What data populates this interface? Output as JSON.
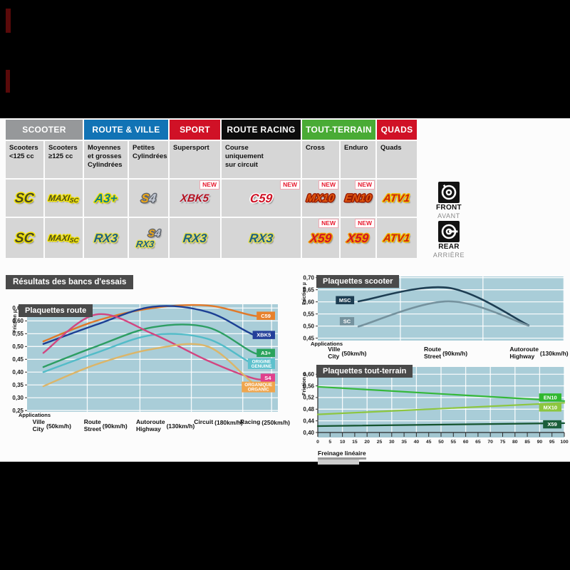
{
  "section_title": "Résultats des bancs d'essais",
  "table": {
    "new_label": "NEW",
    "groups": [
      {
        "label": "SCOOTER",
        "color": "#96989a",
        "span": 2
      },
      {
        "label": "ROUTE & VILLE",
        "color": "#1173b5",
        "span": 2
      },
      {
        "label": "SPORT",
        "color": "#d01126",
        "span": 1
      },
      {
        "label": "ROUTE RACING",
        "color": "#0d0d0d",
        "span": 1
      },
      {
        "label": "TOUT-TERRAIN",
        "color": "#49ab35",
        "span": 2
      },
      {
        "label": "QUADS",
        "color": "#d01126",
        "span": 1
      }
    ],
    "subheaders": [
      "Scooters\n<125 cc",
      "Scooters\n≥125 cc",
      "Moyennes\net grosses\nCylindrées",
      "Petites\nCylindrées",
      "Supersport",
      "Course\nuniquement\nsur circuit",
      "Cross",
      "Enduro",
      "Quads"
    ],
    "rows": [
      {
        "side": "front",
        "cells": [
          {
            "items": [
              "SC"
            ],
            "new": false
          },
          {
            "items": [
              "MAXI-SC"
            ],
            "new": false
          },
          {
            "items": [
              "A3+"
            ],
            "new": false
          },
          {
            "items": [
              "S4"
            ],
            "new": false
          },
          {
            "items": [
              "XBK5"
            ],
            "new": true
          },
          {
            "items": [
              "C59"
            ],
            "new": true
          },
          {
            "items": [
              "MX10"
            ],
            "new": true
          },
          {
            "items": [
              "EN10"
            ],
            "new": true
          },
          {
            "items": [
              "ATV1"
            ],
            "new": false
          }
        ]
      },
      {
        "side": "rear",
        "cells": [
          {
            "items": [
              "SC"
            ],
            "new": false
          },
          {
            "items": [
              "MAXI-SC"
            ],
            "new": false
          },
          {
            "items": [
              "RX3"
            ],
            "new": false
          },
          {
            "items": [
              "S4",
              "RX3"
            ],
            "new": false
          },
          {
            "items": [
              "RX3"
            ],
            "new": false
          },
          {
            "items": [
              "RX3"
            ],
            "new": false
          },
          {
            "items": [
              "X59"
            ],
            "new": true
          },
          {
            "items": [
              "X59"
            ],
            "new": true
          },
          {
            "items": [
              "ATV1"
            ],
            "new": false
          }
        ]
      }
    ]
  },
  "products": {
    "SC": {
      "color": "#4a4a20",
      "outline": "#f2e300"
    },
    "MAXI-SC": {
      "color": "#4a4a20",
      "outline": "#f2e300"
    },
    "A3+": {
      "color": "#0f7f86",
      "outline": "#f2e300"
    },
    "S4": {
      "parts": [
        {
          "t": "S",
          "color": "#f0a816"
        },
        {
          "t": "4",
          "color": "#c3c9d4"
        }
      ],
      "outline": "#62676f"
    },
    "XBK5": {
      "color": "#b5121f",
      "outline": "#d6d6de"
    },
    "C59": {
      "color": "#cf1326",
      "outline": "#ffffff"
    },
    "MX10": {
      "color": "#e0580f",
      "outline": "#991a00"
    },
    "EN10": {
      "color": "#e0580f",
      "outline": "#991a00"
    },
    "ATV1": {
      "color": "#cc2012",
      "outline": "#f2c300"
    },
    "RX3": {
      "color": "#1b5f86",
      "outline": "#e6df52"
    },
    "X59": {
      "color": "#cf1326",
      "outline": "#f0a000"
    }
  },
  "side_badges": {
    "front": {
      "label": "FRONT",
      "sub": "AVANT"
    },
    "rear": {
      "label": "REAR",
      "sub": "ARRIÈRE"
    }
  },
  "chart_data": [
    {
      "type": "line",
      "title": "Plaquettes route",
      "ylabel": "Friction µ",
      "ylim": [
        0.25,
        0.65
      ],
      "yticks": [
        0.65,
        0.6,
        0.55,
        0.5,
        0.45,
        0.4,
        0.35,
        0.3,
        0.25
      ],
      "x_axis_label": "Applications",
      "x_categories": [
        {
          "fr": "Ville",
          "en": "City",
          "speed": "(50km/h)"
        },
        {
          "fr": "Route",
          "en": "Street",
          "speed": "(90km/h)"
        },
        {
          "fr": "Autoroute",
          "en": "Highway",
          "speed": "(130km/h)"
        },
        {
          "fr": "Circuit",
          "en": "",
          "speed": "(180km/h)"
        },
        {
          "fr": "Racing",
          "en": "",
          "speed": "(250km/h)"
        }
      ],
      "grid": true,
      "legend_position": "right",
      "series": [
        {
          "name": "C59",
          "color": "#e07828",
          "label_bg": "#e8812c",
          "label_lines": [
            "C59"
          ],
          "label_v": 0.62,
          "values": [
            0.52,
            0.6,
            0.65,
            0.66,
            0.62
          ]
        },
        {
          "name": "XBK5",
          "color": "#1c3f94",
          "label_bg": "#24409a",
          "label_lines": [
            "XBK5"
          ],
          "label_v": 0.545,
          "values": [
            0.51,
            0.585,
            0.655,
            0.635,
            0.545
          ]
        },
        {
          "name": "A3+",
          "color": "#2d9e63",
          "label_bg": "#2aa35c",
          "label_lines": [
            "A3+"
          ],
          "label_v": 0.475,
          "values": [
            0.42,
            0.5,
            0.575,
            0.575,
            0.475
          ]
        },
        {
          "name": "ORIGINE GENUINE",
          "color": "#53bcc8",
          "label_bg": "#5ec1cd",
          "label_lines": [
            "ORIGINE",
            "GENUINE"
          ],
          "label_v": 0.433,
          "values": [
            0.4,
            0.475,
            0.545,
            0.53,
            0.43
          ]
        },
        {
          "name": "S4",
          "color": "#d24580",
          "label_bg": "#e0408c",
          "label_lines": [
            "S4"
          ],
          "label_v": 0.378,
          "values": [
            0.475,
            0.625,
            0.55,
            0.445,
            0.375
          ]
        },
        {
          "name": "ORGANIQUE ORGANIC",
          "color": "#dcb568",
          "label_bg": "#f0a54c",
          "label_lines": [
            "ORGANIQUE",
            "ORGANIC"
          ],
          "label_v": 0.342,
          "values": [
            0.345,
            0.43,
            0.49,
            0.5,
            0.355
          ]
        }
      ]
    },
    {
      "type": "line",
      "title": "Plaquettes scooter",
      "ylabel": "Friction µ",
      "ylim": [
        0.45,
        0.7
      ],
      "yticks": [
        0.7,
        0.65,
        0.6,
        0.55,
        0.5,
        0.45
      ],
      "x_axis_label": "Applications",
      "x_categories": [
        {
          "fr": "Ville",
          "en": "City",
          "speed": "(50km/h)"
        },
        {
          "fr": "Route",
          "en": "Street",
          "speed": "(90km/h)"
        },
        {
          "fr": "Autoroute",
          "en": "Highway",
          "speed": "(130km/h)"
        }
      ],
      "grid": true,
      "legend_position": "left",
      "series": [
        {
          "name": "MSC",
          "color": "#1d3d52",
          "label_bg": "#1d3d52",
          "label_lines": [
            "MSC"
          ],
          "label_v": 0.607,
          "values": [
            0.602,
            0.658,
            0.503
          ]
        },
        {
          "name": "SC",
          "color": "#75929e",
          "label_bg": "#75929e",
          "label_lines": [
            "SC"
          ],
          "label_v": 0.52,
          "values": [
            0.498,
            0.602,
            0.502
          ]
        }
      ]
    },
    {
      "type": "line",
      "title": "Plaquettes tout-terrain",
      "ylabel": "Friction µ",
      "ylim": [
        0.4,
        0.6
      ],
      "yticks": [
        0.6,
        0.56,
        0.52,
        0.48,
        0.44,
        0.4
      ],
      "x_range": [
        0,
        100
      ],
      "x_tick_step": 5,
      "x_axis_label": "Freinage linéaire",
      "grid": true,
      "legend_position": "right",
      "series": [
        {
          "name": "EN10",
          "color": "#35b83a",
          "label_bg": "#2eb82e",
          "label_lines": [
            "EN10"
          ],
          "label_v": 0.52,
          "values": [
            0.557,
            0.508
          ]
        },
        {
          "name": "MX10",
          "color": "#8dc63f",
          "label_bg": "#8cc63f",
          "label_lines": [
            "MX10"
          ],
          "label_v": 0.486,
          "values": [
            0.462,
            0.502
          ]
        },
        {
          "name": "X59",
          "color": "#14532e",
          "label_bg": "#1a5e3a",
          "label_lines": [
            "X59"
          ],
          "label_v": 0.428,
          "values": [
            0.422,
            0.432
          ]
        }
      ]
    }
  ]
}
